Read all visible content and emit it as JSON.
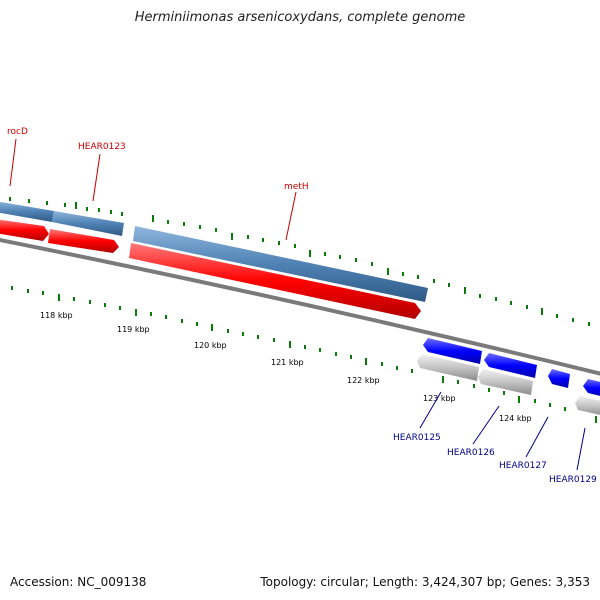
{
  "title": "Herminiimonas arsenicoxydans, complete genome",
  "accession_text": "Accession: NC_009138",
  "summary_text": "Topology: circular; Length: 3,424,307 bp; Genes: 3,353",
  "colors": {
    "forward_cds": "#4f82b4",
    "forward_gene": "#ff0000",
    "reverse_cds": "#0000ff",
    "reverse_gene": "#bdbdbd",
    "backbone": "#808080",
    "ticks": "#0a7a0a",
    "forward_label": "#cc0000",
    "reverse_label": "#00008b"
  },
  "scale_labels": [
    {
      "kbp": 118,
      "label": "118 kbp"
    },
    {
      "kbp": 119,
      "label": "119 kbp"
    },
    {
      "kbp": 120,
      "label": "120 kbp"
    },
    {
      "kbp": 121,
      "label": "121 kbp"
    },
    {
      "kbp": 122,
      "label": "122 kbp"
    },
    {
      "kbp": 123,
      "label": "123 kbp"
    },
    {
      "kbp": 124,
      "label": "124 kbp"
    }
  ],
  "gene_labels": {
    "forward": [
      "rocD",
      "HEAR0123",
      "metH"
    ],
    "reverse": [
      "HEAR0125",
      "HEAR0126",
      "HEAR0127",
      "HEAR0129"
    ]
  }
}
